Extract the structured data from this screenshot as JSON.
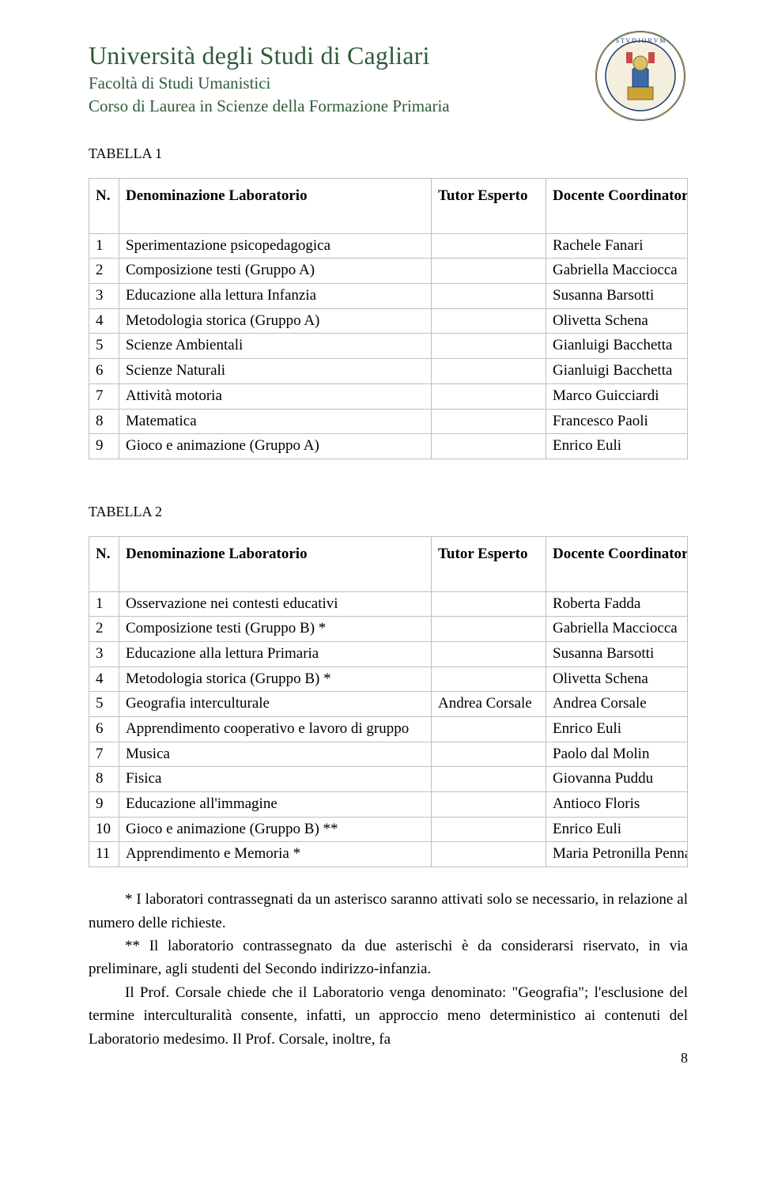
{
  "header": {
    "university": "Università degli Studi di Cagliari",
    "faculty": "Facoltà di Studi Umanistici",
    "course": "Corso di Laurea in Scienze della Formazione Primaria"
  },
  "section1": {
    "label": "TABELLA 1"
  },
  "section2": {
    "label": "TABELLA 2"
  },
  "columns": {
    "n": "N.",
    "denom": "Denominazione Laboratorio",
    "tutor": "Tutor Esperto",
    "doc": "Docente Coordinatore"
  },
  "table1": [
    {
      "n": "1",
      "denom": "Sperimentazione psicopedagogica",
      "tutor": "",
      "doc": "Rachele Fanari"
    },
    {
      "n": "2",
      "denom": "Composizione testi (Gruppo A)",
      "tutor": "",
      "doc": "Gabriella Macciocca"
    },
    {
      "n": "3",
      "denom": "Educazione alla lettura Infanzia",
      "tutor": "",
      "doc": "Susanna Barsotti"
    },
    {
      "n": "4",
      "denom": "Metodologia storica (Gruppo A)",
      "tutor": "",
      "doc": "Olivetta Schena"
    },
    {
      "n": "5",
      "denom": "Scienze Ambientali",
      "tutor": "",
      "doc": "Gianluigi Bacchetta"
    },
    {
      "n": "6",
      "denom": "Scienze Naturali",
      "tutor": "",
      "doc": "Gianluigi Bacchetta"
    },
    {
      "n": "7",
      "denom": "Attività motoria",
      "tutor": "",
      "doc": "Marco Guicciardi"
    },
    {
      "n": "8",
      "denom": "Matematica",
      "tutor": "",
      "doc": "Francesco Paoli"
    },
    {
      "n": "9",
      "denom": "Gioco e animazione (Gruppo A)",
      "tutor": "",
      "doc": "Enrico Euli"
    }
  ],
  "table2": [
    {
      "n": "1",
      "denom": "Osservazione nei contesti educativi",
      "tutor": "",
      "doc": "Roberta Fadda"
    },
    {
      "n": "2",
      "denom": "Composizione testi (Gruppo B) *",
      "tutor": "",
      "doc": "Gabriella Macciocca"
    },
    {
      "n": "3",
      "denom": "Educazione alla lettura Primaria",
      "tutor": "",
      "doc": "Susanna Barsotti"
    },
    {
      "n": "4",
      "denom": "Metodologia storica (Gruppo B) *",
      "tutor": "",
      "doc": "Olivetta Schena"
    },
    {
      "n": "5",
      "denom": "Geografia interculturale",
      "tutor": "Andrea Corsale",
      "doc": "Andrea Corsale"
    },
    {
      "n": "6",
      "denom": "Apprendimento cooperativo e lavoro di gruppo",
      "tutor": "",
      "doc": "Enrico Euli"
    },
    {
      "n": "7",
      "denom": "Musica",
      "tutor": "",
      "doc": "Paolo dal Molin"
    },
    {
      "n": "8",
      "denom": "Fisica",
      "tutor": "",
      "doc": "Giovanna Puddu"
    },
    {
      "n": "9",
      "denom": "Educazione all'immagine",
      "tutor": "",
      "doc": "Antioco Floris"
    },
    {
      "n": "10",
      "denom": "Gioco e animazione (Gruppo B) **",
      "tutor": "",
      "doc": "Enrico Euli"
    },
    {
      "n": "11",
      "denom": "Apprendimento e Memoria   *",
      "tutor": "",
      "doc": "Maria Petronilla Penna"
    }
  ],
  "notes": {
    "p1": "* I laboratori contrassegnati da un asterisco saranno attivati solo se necessario, in relazione al numero delle richieste.",
    "p2": "** Il laboratorio contrassegnato da due asterischi è da considerarsi riservato, in via preliminare, agli studenti del Secondo indirizzo-infanzia.",
    "p3": "Il Prof. Corsale chiede che il Laboratorio venga denominato: \"Geografia\"; l'esclusione del termine interculturalità consente, infatti, un approccio meno deterministico ai contenuti del Laboratorio medesimo. Il Prof. Corsale, inoltre, fa"
  },
  "page_number": "8"
}
